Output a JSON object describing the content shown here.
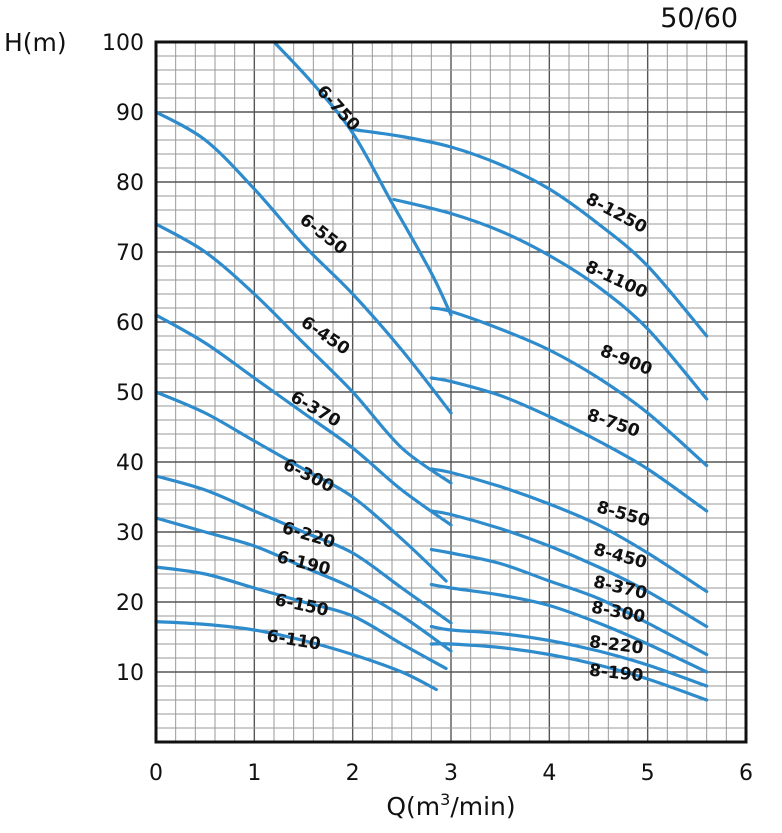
{
  "chart_data": {
    "type": "line",
    "corner_label": "50/60",
    "ylabel": "H(m)",
    "xlabel_prefix": "Q(m",
    "xlabel_sup": "3",
    "xlabel_suffix": "/min)",
    "xlim": [
      0,
      6
    ],
    "ylim": [
      0,
      100
    ],
    "x_ticks": [
      "0",
      "1",
      "2",
      "3",
      "4",
      "5",
      "6"
    ],
    "y_ticks": [
      "10",
      "20",
      "30",
      "40",
      "50",
      "60",
      "70",
      "80",
      "90",
      "100"
    ],
    "grid": true,
    "series": [
      {
        "name": "6-750",
        "points": [
          [
            1.2,
            100
          ],
          [
            1.6,
            94
          ],
          [
            2.0,
            87
          ],
          [
            2.4,
            77
          ],
          [
            2.8,
            67
          ],
          [
            3.0,
            61
          ]
        ]
      },
      {
        "name": "6-550",
        "points": [
          [
            0.0,
            90
          ],
          [
            0.5,
            86
          ],
          [
            1.0,
            79
          ],
          [
            1.5,
            71
          ],
          [
            2.0,
            64
          ],
          [
            2.5,
            56
          ],
          [
            3.0,
            47
          ]
        ]
      },
      {
        "name": "6-450",
        "points": [
          [
            0.0,
            74
          ],
          [
            0.5,
            70
          ],
          [
            1.0,
            64
          ],
          [
            1.5,
            57
          ],
          [
            2.0,
            50
          ],
          [
            2.5,
            42
          ],
          [
            3.0,
            37
          ]
        ]
      },
      {
        "name": "6-370",
        "points": [
          [
            0.0,
            61
          ],
          [
            0.5,
            57
          ],
          [
            1.0,
            52
          ],
          [
            1.5,
            47
          ],
          [
            2.0,
            42
          ],
          [
            2.5,
            36
          ],
          [
            3.0,
            31
          ]
        ]
      },
      {
        "name": "6-300",
        "points": [
          [
            0.0,
            50
          ],
          [
            0.5,
            47
          ],
          [
            1.0,
            43
          ],
          [
            1.5,
            39
          ],
          [
            2.0,
            35
          ],
          [
            2.5,
            29
          ],
          [
            2.95,
            23
          ]
        ]
      },
      {
        "name": "6-220",
        "points": [
          [
            0.0,
            38
          ],
          [
            0.5,
            36
          ],
          [
            1.0,
            33
          ],
          [
            1.5,
            30
          ],
          [
            2.0,
            27
          ],
          [
            2.5,
            22
          ],
          [
            3.0,
            17
          ]
        ]
      },
      {
        "name": "6-190",
        "points": [
          [
            0.0,
            32
          ],
          [
            0.5,
            30
          ],
          [
            1.0,
            28
          ],
          [
            1.5,
            25
          ],
          [
            2.0,
            22
          ],
          [
            2.5,
            18
          ],
          [
            3.0,
            13
          ]
        ]
      },
      {
        "name": "6-150",
        "points": [
          [
            0.0,
            25
          ],
          [
            0.5,
            24
          ],
          [
            1.0,
            22
          ],
          [
            1.5,
            20
          ],
          [
            2.0,
            18
          ],
          [
            2.5,
            14
          ],
          [
            2.95,
            10.5
          ]
        ]
      },
      {
        "name": "6-110",
        "points": [
          [
            0.0,
            17.2
          ],
          [
            0.5,
            16.8
          ],
          [
            1.0,
            16
          ],
          [
            1.5,
            14.5
          ],
          [
            2.0,
            12.5
          ],
          [
            2.5,
            10
          ],
          [
            2.85,
            7.5
          ]
        ]
      },
      {
        "name": "8-1250",
        "points": [
          [
            2.0,
            87.5
          ],
          [
            2.5,
            86.5
          ],
          [
            3.0,
            85
          ],
          [
            3.5,
            82.5
          ],
          [
            4.0,
            79
          ],
          [
            4.5,
            74
          ],
          [
            5.0,
            68
          ],
          [
            5.6,
            58
          ]
        ]
      },
      {
        "name": "8-1100",
        "points": [
          [
            2.42,
            77.5
          ],
          [
            3.0,
            75.5
          ],
          [
            3.5,
            73
          ],
          [
            4.0,
            69.5
          ],
          [
            4.5,
            65
          ],
          [
            5.0,
            59
          ],
          [
            5.6,
            49
          ]
        ]
      },
      {
        "name": "8-900",
        "points": [
          [
            2.8,
            62
          ],
          [
            3.0,
            61.5
          ],
          [
            3.5,
            59
          ],
          [
            4.0,
            56
          ],
          [
            4.5,
            52
          ],
          [
            5.0,
            47
          ],
          [
            5.6,
            39.5
          ]
        ]
      },
      {
        "name": "8-750",
        "points": [
          [
            2.8,
            52
          ],
          [
            3.0,
            51.5
          ],
          [
            3.5,
            49.5
          ],
          [
            4.0,
            46.5
          ],
          [
            4.5,
            43
          ],
          [
            5.0,
            39
          ],
          [
            5.6,
            33
          ]
        ]
      },
      {
        "name": "8-550",
        "points": [
          [
            2.8,
            39
          ],
          [
            3.0,
            38.5
          ],
          [
            3.5,
            36.5
          ],
          [
            4.0,
            34
          ],
          [
            4.5,
            31
          ],
          [
            5.0,
            27
          ],
          [
            5.6,
            21.5
          ]
        ]
      },
      {
        "name": "8-450",
        "points": [
          [
            2.8,
            33
          ],
          [
            3.0,
            32.5
          ],
          [
            3.5,
            30.5
          ],
          [
            4.0,
            28
          ],
          [
            4.5,
            25
          ],
          [
            5.0,
            21.5
          ],
          [
            5.6,
            16.5
          ]
        ]
      },
      {
        "name": "8-370",
        "points": [
          [
            2.8,
            27.5
          ],
          [
            3.0,
            27
          ],
          [
            3.5,
            25.5
          ],
          [
            4.0,
            23
          ],
          [
            4.5,
            20.5
          ],
          [
            5.0,
            17
          ],
          [
            5.6,
            12.5
          ]
        ]
      },
      {
        "name": "8-300",
        "points": [
          [
            2.8,
            22.5
          ],
          [
            3.0,
            22
          ],
          [
            3.5,
            21
          ],
          [
            4.0,
            19.5
          ],
          [
            4.5,
            17
          ],
          [
            5.0,
            14
          ],
          [
            5.6,
            10
          ]
        ]
      },
      {
        "name": "8-220",
        "points": [
          [
            2.8,
            16.5
          ],
          [
            3.0,
            16
          ],
          [
            3.5,
            15.5
          ],
          [
            4.0,
            14.5
          ],
          [
            4.5,
            13
          ],
          [
            5.0,
            11
          ],
          [
            5.6,
            8
          ]
        ]
      },
      {
        "name": "8-190",
        "points": [
          [
            2.8,
            14
          ],
          [
            3.0,
            14
          ],
          [
            3.5,
            13.5
          ],
          [
            4.0,
            12.5
          ],
          [
            4.5,
            11
          ],
          [
            5.0,
            9
          ],
          [
            5.6,
            6
          ]
        ]
      }
    ],
    "curve_labels": [
      {
        "text": "6-750",
        "x": 1.85,
        "y": 90.5,
        "rotate": 48
      },
      {
        "text": "6-550",
        "x": 1.7,
        "y": 72.5,
        "rotate": 38
      },
      {
        "text": "6-450",
        "x": 1.72,
        "y": 58,
        "rotate": 34
      },
      {
        "text": "6-370",
        "x": 1.62,
        "y": 47.5,
        "rotate": 30
      },
      {
        "text": "6-300",
        "x": 1.55,
        "y": 38,
        "rotate": 27
      },
      {
        "text": "6-220",
        "x": 1.55,
        "y": 29.5,
        "rotate": 17
      },
      {
        "text": "6-190",
        "x": 1.5,
        "y": 25.5,
        "rotate": 14
      },
      {
        "text": "6-150",
        "x": 1.48,
        "y": 19.5,
        "rotate": 12
      },
      {
        "text": "6-110",
        "x": 1.4,
        "y": 14.5,
        "rotate": 9
      },
      {
        "text": "8-1250",
        "x": 4.68,
        "y": 75.5,
        "rotate": 28
      },
      {
        "text": "8-1100",
        "x": 4.68,
        "y": 66,
        "rotate": 25
      },
      {
        "text": "8-900",
        "x": 4.78,
        "y": 54.5,
        "rotate": 22
      },
      {
        "text": "8-750",
        "x": 4.65,
        "y": 45.5,
        "rotate": 19
      },
      {
        "text": "8-550",
        "x": 4.75,
        "y": 32.5,
        "rotate": 16
      },
      {
        "text": "8-450",
        "x": 4.72,
        "y": 26.5,
        "rotate": 15
      },
      {
        "text": "8-370",
        "x": 4.72,
        "y": 22,
        "rotate": 13
      },
      {
        "text": "8-300",
        "x": 4.7,
        "y": 18.5,
        "rotate": 11
      },
      {
        "text": "8-220",
        "x": 4.68,
        "y": 13.8,
        "rotate": 7
      },
      {
        "text": "8-190",
        "x": 4.68,
        "y": 9.8,
        "rotate": 6
      }
    ],
    "colors": {
      "curve": "#2f8ccc",
      "frame": "#111111",
      "grid": "#9a9a9a"
    }
  }
}
